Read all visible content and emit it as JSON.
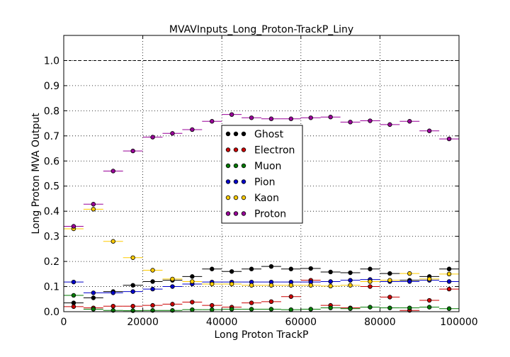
{
  "chart_data": {
    "type": "scatter",
    "title": "MVAVInputs_Long_Proton-TrackP_Liny",
    "xlabel": "Long Proton TrackP",
    "ylabel": "Long Proton MVA Output",
    "xlim": [
      0,
      100000
    ],
    "ylim": [
      0.0,
      1.1
    ],
    "xticks": [
      0,
      20000,
      40000,
      60000,
      80000,
      100000
    ],
    "xtick_labels": [
      "0",
      "20000",
      "40000",
      "60000",
      "80000",
      "100000"
    ],
    "yticks": [
      0.0,
      0.1,
      0.2,
      0.3,
      0.4,
      0.5,
      0.6,
      0.7,
      0.8,
      0.9,
      1.0
    ],
    "ytick_labels": [
      "0.0",
      "0.1",
      "0.2",
      "0.3",
      "0.4",
      "0.5",
      "0.6",
      "0.7",
      "0.8",
      "0.9",
      "1.0"
    ],
    "grid": true,
    "reference_line": 1.0,
    "legend_position": "center",
    "bin_width": 5000,
    "x": [
      2500,
      7500,
      12500,
      17500,
      22500,
      27500,
      32500,
      37500,
      42500,
      47500,
      52500,
      57500,
      62500,
      67500,
      72500,
      77500,
      82500,
      87500,
      92500,
      97500
    ],
    "series": [
      {
        "name": "Ghost",
        "color": "#000000",
        "values": [
          0.035,
          0.055,
          0.08,
          0.105,
          0.12,
          0.125,
          0.14,
          0.17,
          0.16,
          0.17,
          0.18,
          0.17,
          0.172,
          0.158,
          0.155,
          0.17,
          0.152,
          0.125,
          0.14,
          0.17
        ]
      },
      {
        "name": "Electron",
        "color": "#cc0000",
        "values": [
          0.02,
          0.015,
          0.022,
          0.022,
          0.025,
          0.03,
          0.038,
          0.025,
          0.018,
          0.035,
          0.04,
          0.06,
          0.125,
          0.025,
          0.015,
          0.1,
          0.058,
          0.005,
          0.045,
          0.09
        ]
      },
      {
        "name": "Muon",
        "color": "#007a00",
        "values": [
          0.065,
          0.01,
          0.005,
          0.004,
          0.005,
          0.005,
          0.008,
          0.008,
          0.01,
          0.01,
          0.01,
          0.008,
          0.01,
          0.015,
          0.012,
          0.018,
          0.015,
          0.015,
          0.018,
          0.012
        ]
      },
      {
        "name": "Pion",
        "color": "#0000cc",
        "values": [
          0.118,
          0.075,
          0.075,
          0.08,
          0.09,
          0.1,
          0.11,
          0.118,
          0.118,
          0.118,
          0.118,
          0.118,
          0.118,
          0.12,
          0.125,
          0.128,
          0.12,
          0.12,
          0.125,
          0.12
        ]
      },
      {
        "name": "Kaon",
        "color": "#ffcc00",
        "values": [
          0.33,
          0.408,
          0.28,
          0.215,
          0.165,
          0.13,
          0.12,
          0.11,
          0.11,
          0.105,
          0.105,
          0.105,
          0.105,
          0.102,
          0.105,
          0.12,
          0.125,
          0.152,
          0.13,
          0.15
        ]
      },
      {
        "name": "Proton",
        "color": "#990099",
        "values": [
          0.34,
          0.428,
          0.56,
          0.64,
          0.695,
          0.71,
          0.725,
          0.758,
          0.785,
          0.772,
          0.768,
          0.768,
          0.772,
          0.775,
          0.755,
          0.76,
          0.745,
          0.758,
          0.72,
          0.688
        ]
      }
    ]
  }
}
